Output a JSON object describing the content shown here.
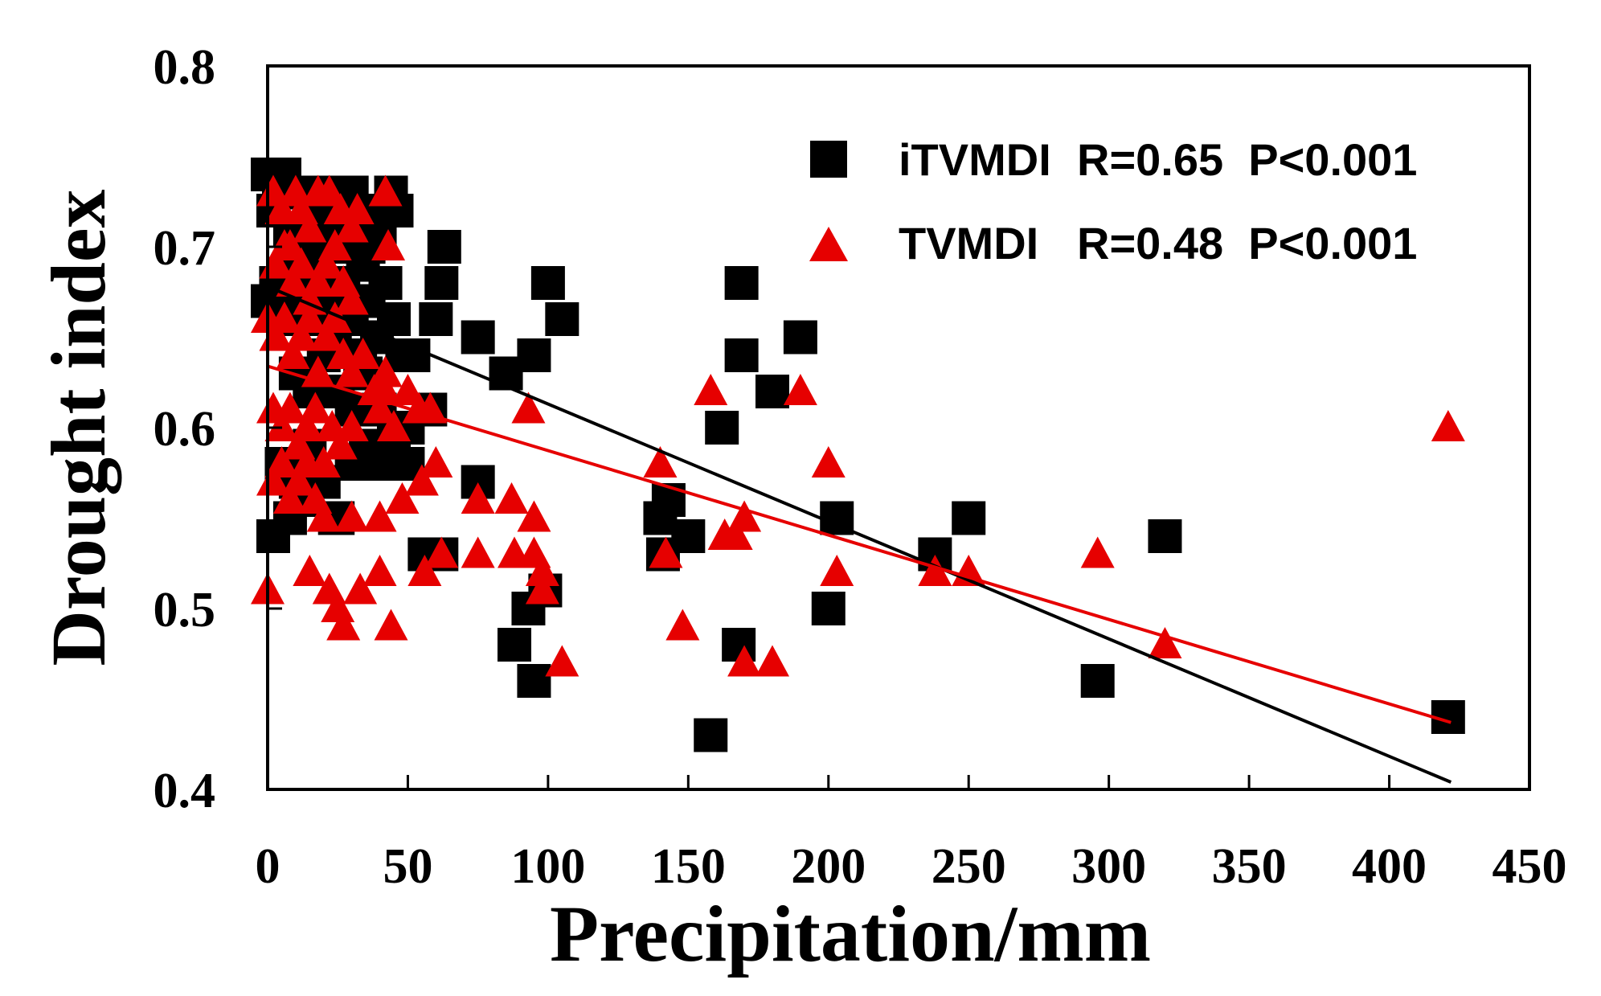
{
  "chart_data": {
    "type": "scatter",
    "title": "",
    "xlabel": "Precipitation/mm",
    "ylabel": "Drought index",
    "xlim": [
      0,
      450
    ],
    "ylim": [
      0.4,
      0.8
    ],
    "xticks": [
      "0",
      "50",
      "100",
      "150",
      "200",
      "250",
      "300",
      "350",
      "400",
      "450"
    ],
    "yticks": [
      "0.4",
      "0.5",
      "0.6",
      "0.7",
      "0.8"
    ],
    "xtick_values": [
      0,
      50,
      100,
      150,
      200,
      250,
      300,
      350,
      400,
      450
    ],
    "ytick_values": [
      0.4,
      0.5,
      0.6,
      0.7,
      0.8
    ],
    "legend_position": "top-right",
    "series": [
      {
        "name": "iTVMDI",
        "legend_label": "iTVMDI",
        "stats": "R=0.65  P<0.001",
        "marker": "square",
        "color": "#000000",
        "points": [
          [
            0,
            0.74
          ],
          [
            2,
            0.72
          ],
          [
            4,
            0.73
          ],
          [
            6,
            0.74
          ],
          [
            8,
            0.71
          ],
          [
            10,
            0.7
          ],
          [
            12,
            0.69
          ],
          [
            14,
            0.73
          ],
          [
            16,
            0.72
          ],
          [
            18,
            0.71
          ],
          [
            20,
            0.7
          ],
          [
            22,
            0.72
          ],
          [
            24,
            0.73
          ],
          [
            26,
            0.71
          ],
          [
            28,
            0.7
          ],
          [
            30,
            0.73
          ],
          [
            32,
            0.71
          ],
          [
            34,
            0.69
          ],
          [
            36,
            0.7
          ],
          [
            38,
            0.72
          ],
          [
            40,
            0.71
          ],
          [
            44,
            0.73
          ],
          [
            46,
            0.72
          ],
          [
            0,
            0.67
          ],
          [
            3,
            0.68
          ],
          [
            6,
            0.66
          ],
          [
            9,
            0.69
          ],
          [
            12,
            0.67
          ],
          [
            15,
            0.68
          ],
          [
            18,
            0.66
          ],
          [
            21,
            0.67
          ],
          [
            24,
            0.65
          ],
          [
            27,
            0.68
          ],
          [
            30,
            0.66
          ],
          [
            33,
            0.64
          ],
          [
            36,
            0.67
          ],
          [
            39,
            0.65
          ],
          [
            42,
            0.68
          ],
          [
            45,
            0.66
          ],
          [
            48,
            0.64
          ],
          [
            10,
            0.63
          ],
          [
            15,
            0.62
          ],
          [
            20,
            0.64
          ],
          [
            25,
            0.62
          ],
          [
            30,
            0.61
          ],
          [
            35,
            0.63
          ],
          [
            40,
            0.61
          ],
          [
            45,
            0.6
          ],
          [
            50,
            0.6
          ],
          [
            5,
            0.58
          ],
          [
            10,
            0.57
          ],
          [
            15,
            0.59
          ],
          [
            20,
            0.57
          ],
          [
            25,
            0.55
          ],
          [
            30,
            0.58
          ],
          [
            35,
            0.59
          ],
          [
            40,
            0.58
          ],
          [
            45,
            0.59
          ],
          [
            50,
            0.58
          ],
          [
            2,
            0.54
          ],
          [
            8,
            0.55
          ],
          [
            14,
            0.56
          ],
          [
            24,
            0.55
          ],
          [
            52,
            0.64
          ],
          [
            58,
            0.61
          ],
          [
            60,
            0.66
          ],
          [
            62,
            0.68
          ],
          [
            63,
            0.7
          ],
          [
            56,
            0.53
          ],
          [
            62,
            0.53
          ],
          [
            75,
            0.57
          ],
          [
            75,
            0.65
          ],
          [
            85,
            0.63
          ],
          [
            88,
            0.48
          ],
          [
            93,
            0.5
          ],
          [
            95,
            0.46
          ],
          [
            95,
            0.64
          ],
          [
            99,
            0.51
          ],
          [
            100,
            0.68
          ],
          [
            105,
            0.66
          ],
          [
            140,
            0.55
          ],
          [
            141,
            0.53
          ],
          [
            143,
            0.56
          ],
          [
            150,
            0.54
          ],
          [
            158,
            0.43
          ],
          [
            162,
            0.6
          ],
          [
            168,
            0.48
          ],
          [
            169,
            0.68
          ],
          [
            169,
            0.64
          ],
          [
            180,
            0.62
          ],
          [
            190,
            0.65
          ],
          [
            200,
            0.5
          ],
          [
            203,
            0.55
          ],
          [
            238,
            0.53
          ],
          [
            250,
            0.55
          ],
          [
            296,
            0.46
          ],
          [
            320,
            0.54
          ],
          [
            421,
            0.44
          ]
        ],
        "trendline": {
          "x": [
            0,
            422
          ],
          "y": [
            0.678,
            0.404
          ]
        }
      },
      {
        "name": "TVMDI",
        "legend_label": "TVMDI",
        "stats": "R=0.48  P<0.001",
        "marker": "triangle",
        "color": "#e60000",
        "points": [
          [
            2,
            0.73
          ],
          [
            5,
            0.72
          ],
          [
            8,
            0.7
          ],
          [
            10,
            0.73
          ],
          [
            12,
            0.72
          ],
          [
            15,
            0.71
          ],
          [
            18,
            0.73
          ],
          [
            22,
            0.73
          ],
          [
            26,
            0.72
          ],
          [
            30,
            0.71
          ],
          [
            32,
            0.72
          ],
          [
            42,
            0.73
          ],
          [
            3,
            0.69
          ],
          [
            6,
            0.7
          ],
          [
            9,
            0.68
          ],
          [
            12,
            0.69
          ],
          [
            15,
            0.67
          ],
          [
            18,
            0.68
          ],
          [
            21,
            0.69
          ],
          [
            24,
            0.7
          ],
          [
            27,
            0.68
          ],
          [
            30,
            0.67
          ],
          [
            43,
            0.7
          ],
          [
            0,
            0.66
          ],
          [
            3,
            0.65
          ],
          [
            6,
            0.66
          ],
          [
            9,
            0.64
          ],
          [
            12,
            0.65
          ],
          [
            15,
            0.66
          ],
          [
            18,
            0.63
          ],
          [
            21,
            0.65
          ],
          [
            24,
            0.66
          ],
          [
            27,
            0.64
          ],
          [
            30,
            0.63
          ],
          [
            34,
            0.64
          ],
          [
            38,
            0.62
          ],
          [
            42,
            0.63
          ],
          [
            2,
            0.61
          ],
          [
            5,
            0.6
          ],
          [
            8,
            0.61
          ],
          [
            11,
            0.59
          ],
          [
            14,
            0.6
          ],
          [
            17,
            0.61
          ],
          [
            20,
            0.58
          ],
          [
            23,
            0.6
          ],
          [
            26,
            0.59
          ],
          [
            30,
            0.6
          ],
          [
            40,
            0.61
          ],
          [
            42,
            0.62
          ],
          [
            45,
            0.6
          ],
          [
            50,
            0.62
          ],
          [
            54,
            0.61
          ],
          [
            58,
            0.61
          ],
          [
            2,
            0.57
          ],
          [
            5,
            0.58
          ],
          [
            8,
            0.56
          ],
          [
            11,
            0.57
          ],
          [
            14,
            0.58
          ],
          [
            17,
            0.56
          ],
          [
            20,
            0.55
          ],
          [
            30,
            0.55
          ],
          [
            40,
            0.55
          ],
          [
            48,
            0.56
          ],
          [
            55,
            0.57
          ],
          [
            60,
            0.58
          ],
          [
            0,
            0.51
          ],
          [
            15,
            0.52
          ],
          [
            22,
            0.51
          ],
          [
            25,
            0.5
          ],
          [
            27,
            0.49
          ],
          [
            33,
            0.51
          ],
          [
            40,
            0.52
          ],
          [
            44,
            0.49
          ],
          [
            56,
            0.52
          ],
          [
            62,
            0.53
          ],
          [
            75,
            0.53
          ],
          [
            75,
            0.56
          ],
          [
            87,
            0.56
          ],
          [
            88,
            0.53
          ],
          [
            93,
            0.61
          ],
          [
            95,
            0.55
          ],
          [
            95,
            0.53
          ],
          [
            98,
            0.52
          ],
          [
            98,
            0.51
          ],
          [
            105,
            0.47
          ],
          [
            140,
            0.58
          ],
          [
            142,
            0.53
          ],
          [
            148,
            0.49
          ],
          [
            158,
            0.62
          ],
          [
            163,
            0.54
          ],
          [
            167,
            0.54
          ],
          [
            170,
            0.55
          ],
          [
            170,
            0.47
          ],
          [
            180,
            0.47
          ],
          [
            190,
            0.62
          ],
          [
            200,
            0.58
          ],
          [
            203,
            0.52
          ],
          [
            238,
            0.52
          ],
          [
            250,
            0.52
          ],
          [
            296,
            0.53
          ],
          [
            320,
            0.48
          ],
          [
            421,
            0.6
          ]
        ],
        "trendline": {
          "x": [
            0,
            422
          ],
          "y": [
            0.634,
            0.437
          ]
        }
      }
    ]
  }
}
